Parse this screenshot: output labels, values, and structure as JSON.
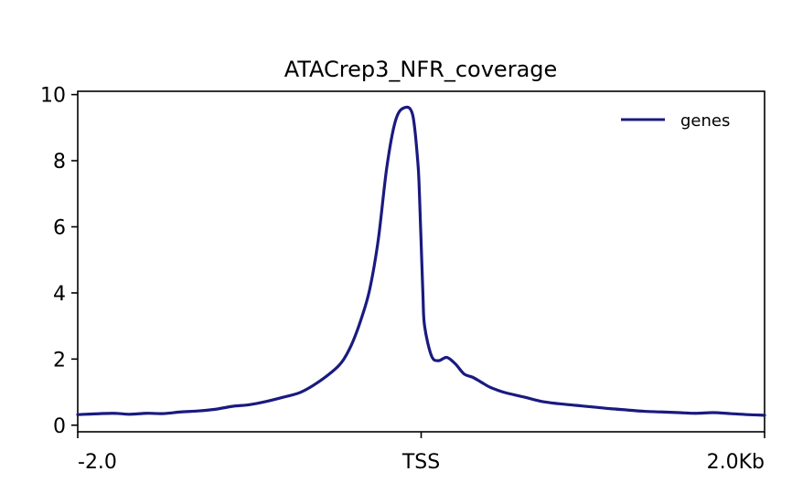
{
  "chart_data": {
    "type": "line",
    "title": "ATACrep3_NFR_coverage",
    "xlabel": "",
    "ylabel": "",
    "xlim": [
      -2000,
      2000
    ],
    "ylim": [
      -0.2,
      10.1
    ],
    "x_ticks": [
      {
        "value": -2000,
        "label": "-2.0"
      },
      {
        "value": 0,
        "label": "TSS"
      },
      {
        "value": 2000,
        "label": "2.0Kb"
      }
    ],
    "y_ticks": [
      {
        "value": 0,
        "label": "0"
      },
      {
        "value": 2,
        "label": "2"
      },
      {
        "value": 4,
        "label": "4"
      },
      {
        "value": 6,
        "label": "6"
      },
      {
        "value": 8,
        "label": "8"
      },
      {
        "value": 10,
        "label": "10"
      }
    ],
    "legend_position": "top-right",
    "grid": false,
    "series": [
      {
        "name": "genes",
        "color": "#1a1a80",
        "x": [
          -2000,
          -1800,
          -1700,
          -1600,
          -1500,
          -1400,
          -1300,
          -1200,
          -1100,
          -1000,
          -900,
          -800,
          -700,
          -600,
          -500,
          -450,
          -400,
          -350,
          -300,
          -250,
          -200,
          -150,
          -100,
          -50,
          -20,
          -10,
          10,
          20,
          60,
          100,
          150,
          200,
          250,
          300,
          350,
          400,
          450,
          500,
          600,
          700,
          800,
          900,
          1000,
          1100,
          1200,
          1300,
          1400,
          1500,
          1600,
          1700,
          1800,
          1900,
          2000
        ],
        "y": [
          0.32,
          0.36,
          0.33,
          0.36,
          0.35,
          0.4,
          0.43,
          0.48,
          0.57,
          0.62,
          0.72,
          0.85,
          1.0,
          1.3,
          1.7,
          2.0,
          2.5,
          3.2,
          4.1,
          5.6,
          7.8,
          9.2,
          9.6,
          9.4,
          8.0,
          7.0,
          4.0,
          3.0,
          2.1,
          1.95,
          2.05,
          1.85,
          1.55,
          1.45,
          1.3,
          1.15,
          1.05,
          0.97,
          0.85,
          0.72,
          0.65,
          0.6,
          0.55,
          0.5,
          0.46,
          0.42,
          0.4,
          0.38,
          0.36,
          0.38,
          0.35,
          0.32,
          0.3
        ]
      }
    ]
  }
}
